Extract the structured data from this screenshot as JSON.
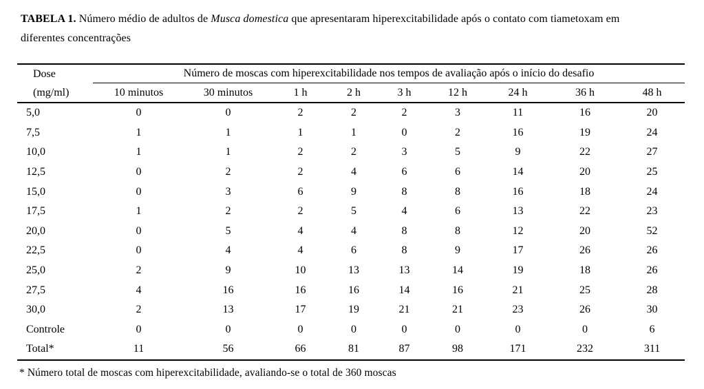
{
  "caption": {
    "label": "TABELA 1.",
    "before_species": " Número médio de adultos de ",
    "species": "Musca domestica",
    "after_species_line1": " que apresentaram hiperexcitabilidade após o contato com tiametoxam em",
    "line2": "diferentes concentrações"
  },
  "table": {
    "dose_header_line1": "Dose",
    "dose_header_line2": "(mg/ml)",
    "group_header": "Número de moscas com hiperexcitabilidade nos tempos de avaliação após o início do desafio",
    "time_headers": [
      "10 minutos",
      "30 minutos",
      "1 h",
      "2 h",
      "3 h",
      "12 h",
      "24 h",
      "36 h",
      "48 h"
    ],
    "rows": [
      {
        "dose": "5,0",
        "values": [
          "0",
          "0",
          "2",
          "2",
          "2",
          "3",
          "11",
          "16",
          "20"
        ]
      },
      {
        "dose": "7,5",
        "values": [
          "1",
          "1",
          "1",
          "1",
          "0",
          "2",
          "16",
          "19",
          "24"
        ]
      },
      {
        "dose": "10,0",
        "values": [
          "1",
          "1",
          "2",
          "2",
          "3",
          "5",
          "9",
          "22",
          "27"
        ]
      },
      {
        "dose": "12,5",
        "values": [
          "0",
          "2",
          "2",
          "4",
          "6",
          "6",
          "14",
          "20",
          "25"
        ]
      },
      {
        "dose": "15,0",
        "values": [
          "0",
          "3",
          "6",
          "9",
          "8",
          "8",
          "16",
          "18",
          "24"
        ]
      },
      {
        "dose": "17,5",
        "values": [
          "1",
          "2",
          "2",
          "5",
          "4",
          "6",
          "13",
          "22",
          "23"
        ]
      },
      {
        "dose": "20,0",
        "values": [
          "0",
          "5",
          "4",
          "4",
          "8",
          "8",
          "12",
          "20",
          "52"
        ]
      },
      {
        "dose": "22,5",
        "values": [
          "0",
          "4",
          "4",
          "6",
          "8",
          "9",
          "17",
          "26",
          "26"
        ]
      },
      {
        "dose": "25,0",
        "values": [
          "2",
          "9",
          "10",
          "13",
          "13",
          "14",
          "19",
          "18",
          "26"
        ]
      },
      {
        "dose": "27,5",
        "values": [
          "4",
          "16",
          "16",
          "16",
          "14",
          "16",
          "21",
          "25",
          "28"
        ]
      },
      {
        "dose": "30,0",
        "values": [
          "2",
          "13",
          "17",
          "19",
          "21",
          "21",
          "23",
          "26",
          "30"
        ]
      },
      {
        "dose": "Controle",
        "values": [
          "0",
          "0",
          "0",
          "0",
          "0",
          "0",
          "0",
          "0",
          "6"
        ]
      },
      {
        "dose": "Total*",
        "values": [
          "11",
          "56",
          "66",
          "81",
          "87",
          "98",
          "171",
          "232",
          "311"
        ]
      }
    ]
  },
  "footnote": "* Número total de moscas com hiperexcitabilidade, avaliando-se o total de 360 moscas"
}
